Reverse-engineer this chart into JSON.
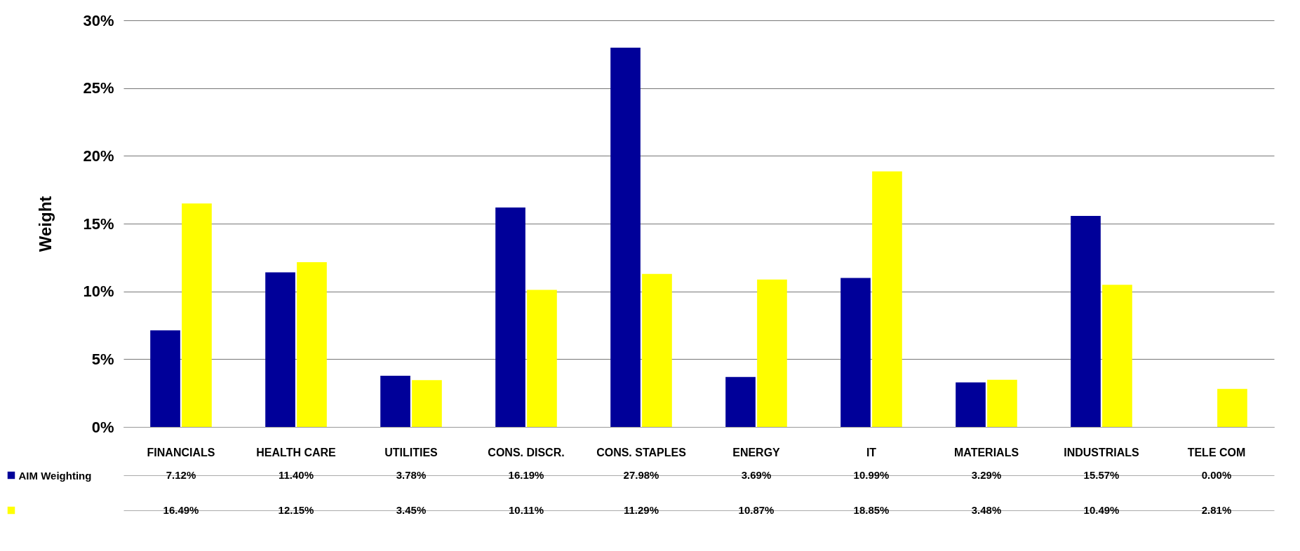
{
  "chart_data": {
    "type": "bar",
    "ylabel": "Weight",
    "categories": [
      "FINANCIALS",
      "HEALTH CARE",
      "UTILITIES",
      "CONS. DISCR.",
      "CONS. STAPLES",
      "ENERGY",
      "IT",
      "MATERIALS",
      "INDUSTRIALS",
      "TELE COM"
    ],
    "series": [
      {
        "name": "AIM Weighting",
        "color": "#000099",
        "values": [
          7.12,
          11.4,
          3.78,
          16.19,
          27.98,
          3.69,
          10.99,
          3.29,
          15.57,
          0.0
        ],
        "value_labels": [
          "7.12%",
          "11.40%",
          "3.78%",
          "16.19%",
          "27.98%",
          "3.69%",
          "10.99%",
          "3.29%",
          "15.57%",
          "0.00%"
        ]
      },
      {
        "color": "#ffff00",
        "values": [
          16.49,
          12.15,
          3.45,
          10.11,
          11.29,
          10.87,
          18.85,
          3.48,
          10.49,
          2.81
        ],
        "value_labels": [
          "16.49%",
          "12.15%",
          "3.45%",
          "10.11%",
          "11.29%",
          "10.87%",
          "18.85%",
          "3.48%",
          "10.49%",
          "2.81%"
        ]
      }
    ],
    "ylim": [
      0,
      30
    ],
    "yticks": [
      {
        "value": 0,
        "label": "0%"
      },
      {
        "value": 5,
        "label": "5%"
      },
      {
        "value": 10,
        "label": "10%"
      },
      {
        "value": 15,
        "label": "15%"
      },
      {
        "value": 20,
        "label": "20%"
      },
      {
        "value": 25,
        "label": "25%"
      },
      {
        "value": 30,
        "label": "30%"
      }
    ],
    "grid": "y",
    "legend": "bottom"
  }
}
